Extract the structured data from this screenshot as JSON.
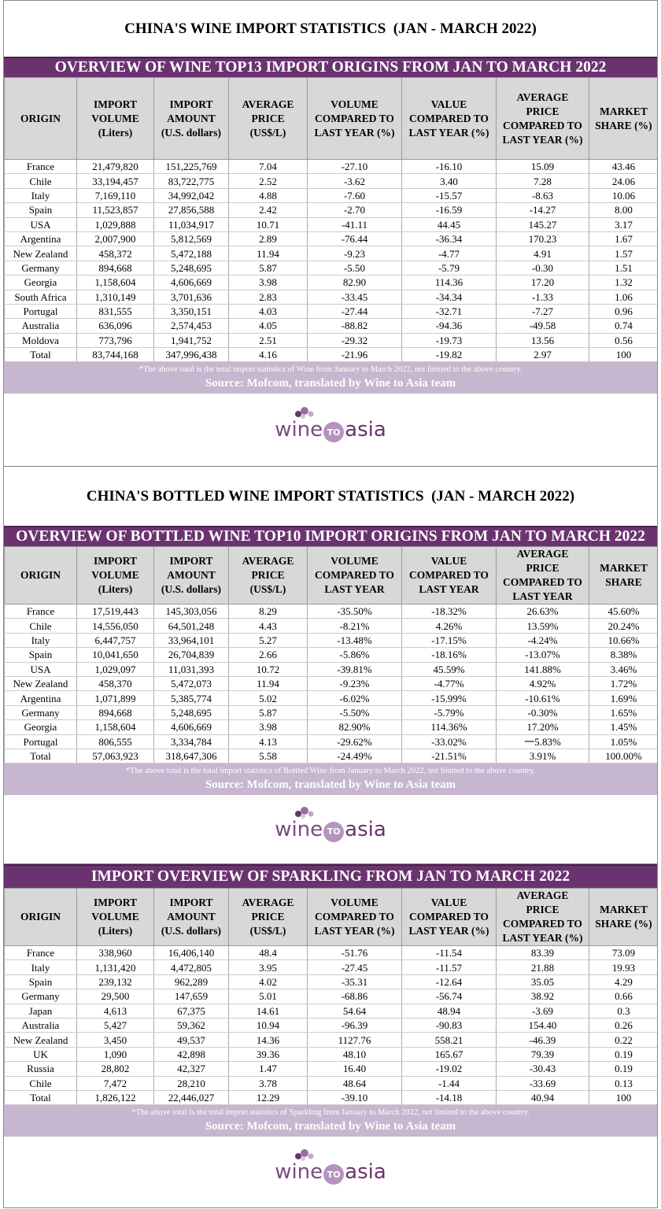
{
  "sections": [
    {
      "title": "CHINA'S WINE IMPORT STATISTICS  (JAN - MARCH 2022)",
      "banner": "OVERVIEW OF WINE TOP13 IMPORT ORIGINS FROM JAN TO MARCH 2022",
      "headers": [
        "ORIGIN",
        "IMPORT\nVOLUME\n(Liters)",
        "IMPORT\nAMOUNT\n(U.S. dollars)",
        "AVERAGE\nPRICE\n(US$/L)",
        "VOLUME\nCOMPARED TO\nLAST YEAR (%)",
        "VALUE\nCOMPARED TO\nLAST YEAR (%)",
        "AVERAGE\nPRICE\nCOMPARED TO\nLAST YEAR (%)",
        "MARKET\nSHARE (%)"
      ],
      "rows": [
        [
          "France",
          "21,479,820",
          "151,225,769",
          "7.04",
          "-27.10",
          "-16.10",
          "15.09",
          "43.46"
        ],
        [
          "Chile",
          "33,194,457",
          "83,722,775",
          "2.52",
          "-3.62",
          "3.40",
          "7.28",
          "24.06"
        ],
        [
          "Italy",
          "7,169,110",
          "34,992,042",
          "4.88",
          "-7.60",
          "-15.57",
          "-8.63",
          "10.06"
        ],
        [
          "Spain",
          "11,523,857",
          "27,856,588",
          "2.42",
          "-2.70",
          "-16.59",
          "-14.27",
          "8.00"
        ],
        [
          "USA",
          "1,029,888",
          "11,034,917",
          "10.71",
          "-41.11",
          "44.45",
          "145.27",
          "3.17"
        ],
        [
          "Argentina",
          "2,007,900",
          "5,812,569",
          "2.89",
          "-76.44",
          "-36.34",
          "170.23",
          "1.67"
        ],
        [
          "New Zealand",
          "458,372",
          "5,472,188",
          "11.94",
          "-9.23",
          "-4.77",
          "4.91",
          "1.57"
        ],
        [
          "Germany",
          "894,668",
          "5,248,695",
          "5.87",
          "-5.50",
          "-5.79",
          "-0.30",
          "1.51"
        ],
        [
          "Georgia",
          "1,158,604",
          "4,606,669",
          "3.98",
          "82.90",
          "114.36",
          "17.20",
          "1.32"
        ],
        [
          "South Africa",
          "1,310,149",
          "3,701,636",
          "2.83",
          "-33.45",
          "-34.34",
          "-1.33",
          "1.06"
        ],
        [
          "Portugal",
          "831,555",
          "3,350,151",
          "4.03",
          "-27.44",
          "-32.71",
          "-7.27",
          "0.96"
        ],
        [
          "Australia",
          "636,096",
          "2,574,453",
          "4.05",
          "-88.82",
          "-94.36",
          "-49.58",
          "0.74"
        ],
        [
          "Moldova",
          "773,796",
          "1,941,752",
          "2.51",
          "-29.32",
          "-19.73",
          "13.56",
          "0.56"
        ],
        [
          "Total",
          "83,744,168",
          "347,996,438",
          "4.16",
          "-21.96",
          "-19.82",
          "2.97",
          "100"
        ]
      ],
      "note": "*The above total is the total import statistics of Wine from January to March 2022, not limited to the above country.",
      "source": "Source: Mofcom, translated by Wine to Asia team",
      "logo": [
        "wine",
        "TO",
        "asia"
      ]
    },
    {
      "title": "CHINA'S BOTTLED WINE IMPORT STATISTICS  (JAN - MARCH 2022)",
      "banner": "OVERVIEW OF BOTTLED WINE TOP10 IMPORT ORIGINS FROM JAN TO MARCH 2022",
      "headers": [
        "ORIGIN",
        "IMPORT\nVOLUME\n(Liters)",
        "IMPORT\nAMOUNT\n(U.S. dollars)",
        "AVERAGE\nPRICE\n(US$/L)",
        "VOLUME\nCOMPARED TO\nLAST YEAR",
        "VALUE\nCOMPARED TO\nLAST YEAR",
        "AVERAGE\nPRICE\nCOMPARED TO\nLAST YEAR",
        "MARKET\nSHARE"
      ],
      "rows": [
        [
          "France",
          "17,519,443",
          "145,303,056",
          "8.29",
          "-35.50%",
          "-18.32%",
          "26.63%",
          "45.60%"
        ],
        [
          "Chile",
          "14,556,050",
          "64,501,248",
          "4.43",
          "-8.21%",
          "4.26%",
          "13.59%",
          "20.24%"
        ],
        [
          "Italy",
          "6,447,757",
          "33,964,101",
          "5.27",
          "-13.48%",
          "-17.15%",
          "-4.24%",
          "10.66%"
        ],
        [
          "Spain",
          "10,041,650",
          "26,704,839",
          "2.66",
          "-5.86%",
          "-18.16%",
          "-13.07%",
          "8.38%"
        ],
        [
          "USA",
          "1,029,097",
          "11,031,393",
          "10.72",
          "-39.81%",
          "45.59%",
          "141.88%",
          "3.46%"
        ],
        [
          "New Zealand",
          "458,370",
          "5,472,073",
          "11.94",
          "-9.23%",
          "-4.77%",
          "4.92%",
          "1.72%"
        ],
        [
          "Argentina",
          "1,071,899",
          "5,385,774",
          "5.02",
          "-6.02%",
          "-15.99%",
          "-10.61%",
          "1.69%"
        ],
        [
          "Germany",
          "894,668",
          "5,248,695",
          "5.87",
          "-5.50%",
          "-5.79%",
          "-0.30%",
          "1.65%"
        ],
        [
          "Georgia",
          "1,158,604",
          "4,606,669",
          "3.98",
          "82.90%",
          "114.36%",
          "17.20%",
          "1.45%"
        ],
        [
          "Portugal",
          "806,555",
          "3,334,784",
          "4.13",
          "-29.62%",
          "-33.02%",
          "一5.83%",
          "1.05%"
        ],
        [
          "Total",
          "57,063,923",
          "318,647,306",
          "5.58",
          "-24.49%",
          "-21.51%",
          "3.91%",
          "100.00%"
        ]
      ],
      "note": "*The above total is the total import statistics of Bottled Wine from January to March 2022, not limited to the above country.",
      "source": "Source: Mofcom, translated by Wine to Asia team",
      "logo": [
        "wine",
        "TO",
        "asia"
      ]
    },
    {
      "banner": "IMPORT OVERVIEW OF SPARKLING FROM JAN TO MARCH 2022",
      "headers": [
        "ORIGIN",
        "IMPORT\nVOLUME\n(Liters)",
        "IMPORT\nAMOUNT\n(U.S. dollars)",
        "AVERAGE\nPRICE\n(US$/L)",
        "VOLUME\nCOMPARED TO\nLAST YEAR (%)",
        "VALUE\nCOMPARED TO\nLAST YEAR (%)",
        "AVERAGE\nPRICE\nCOMPARED TO\nLAST YEAR (%)",
        "MARKET\nSHARE (%)"
      ],
      "rows": [
        [
          "France",
          "338,960",
          "16,406,140",
          "48.4",
          "-51.76",
          "-11.54",
          "83.39",
          "73.09"
        ],
        [
          "Italy",
          "1,131,420",
          "4,472,805",
          "3.95",
          "-27.45",
          "-11.57",
          "21.88",
          "19.93"
        ],
        [
          "Spain",
          "239,132",
          "962,289",
          "4.02",
          "-35.31",
          "-12.64",
          "35.05",
          "4.29"
        ],
        [
          "Germany",
          "29,500",
          "147,659",
          "5.01",
          "-68.86",
          "-56.74",
          "38.92",
          "0.66"
        ],
        [
          "Japan",
          "4,613",
          "67,375",
          "14.61",
          "54.64",
          "48.94",
          "-3.69",
          "0.3"
        ],
        [
          "Australia",
          "5,427",
          "59,362",
          "10.94",
          "-96.39",
          "-90.83",
          "154.40",
          "0.26"
        ],
        [
          "New Zealand",
          "3,450",
          "49,537",
          "14.36",
          "1127.76",
          "558.21",
          "-46.39",
          "0.22"
        ],
        [
          "UK",
          "1,090",
          "42,898",
          "39.36",
          "48.10",
          "165.67",
          "79.39",
          "0.19"
        ],
        [
          "Russia",
          "28,802",
          "42,327",
          "1.47",
          "16.40",
          "-19.02",
          "-30.43",
          "0.19"
        ],
        [
          "Chile",
          "7,472",
          "28,210",
          "3.78",
          "48.64",
          "-1.44",
          "-33.69",
          "0.13"
        ],
        [
          "Total",
          "1,826,122",
          "22,446,027",
          "12.29",
          "-39.10",
          "-14.18",
          "40.94",
          "100"
        ]
      ],
      "note": "*The above total is the total import statistics of Sparkling from January to March 2022, not limited to the above country.",
      "source": "Source: Mofcom, translated by Wine to Asia team",
      "logo": [
        "wine",
        "TO",
        "asia"
      ]
    }
  ]
}
